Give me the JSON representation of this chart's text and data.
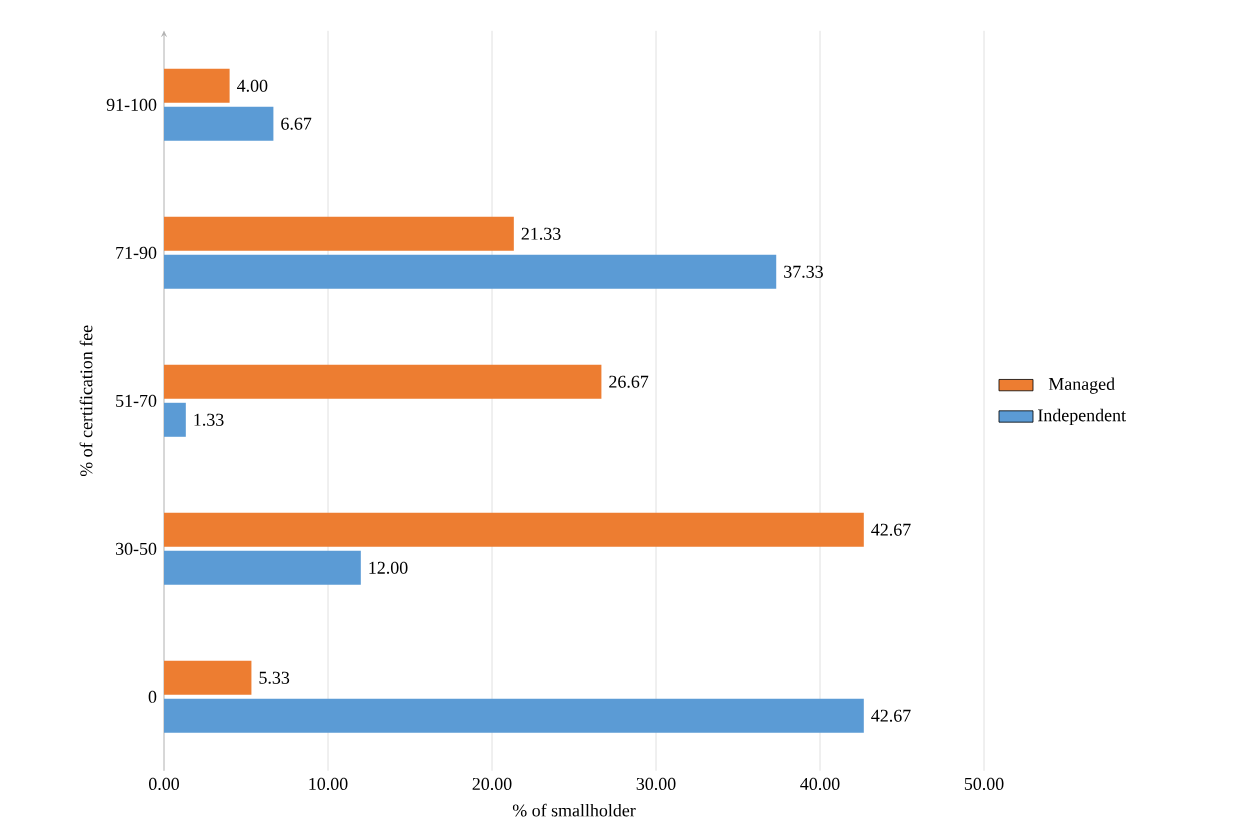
{
  "chart_data": {
    "type": "bar",
    "orientation": "horizontal",
    "xlabel": "% of smallholder",
    "ylabel": "% of certification fee",
    "categories": [
      "91-100",
      "71-90",
      "51-70",
      "30-50",
      "0"
    ],
    "series": [
      {
        "name": "Independent",
        "color": "#5b9bd5",
        "values": [
          6.67,
          37.33,
          1.33,
          12.0,
          42.67
        ],
        "value_labels": [
          "6.67",
          "37.33",
          "1.33",
          "12.00",
          "42.67"
        ]
      },
      {
        "name": "Managed",
        "color": "#ed7d31",
        "values": [
          4.0,
          21.33,
          26.67,
          42.67,
          5.33
        ],
        "value_labels": [
          "4.00",
          "21.33",
          "26.67",
          "42.67",
          "5.33"
        ]
      }
    ],
    "xlim": [
      0,
      50
    ],
    "xticks": [
      {
        "value": 0,
        "label": "0.00"
      },
      {
        "value": 10,
        "label": "10.00"
      },
      {
        "value": 20,
        "label": "20.00"
      },
      {
        "value": 30,
        "label": "30.00"
      },
      {
        "value": 40,
        "label": "40.00"
      },
      {
        "value": 50,
        "label": "50.00"
      }
    ],
    "grid": "x",
    "legend": "right"
  }
}
